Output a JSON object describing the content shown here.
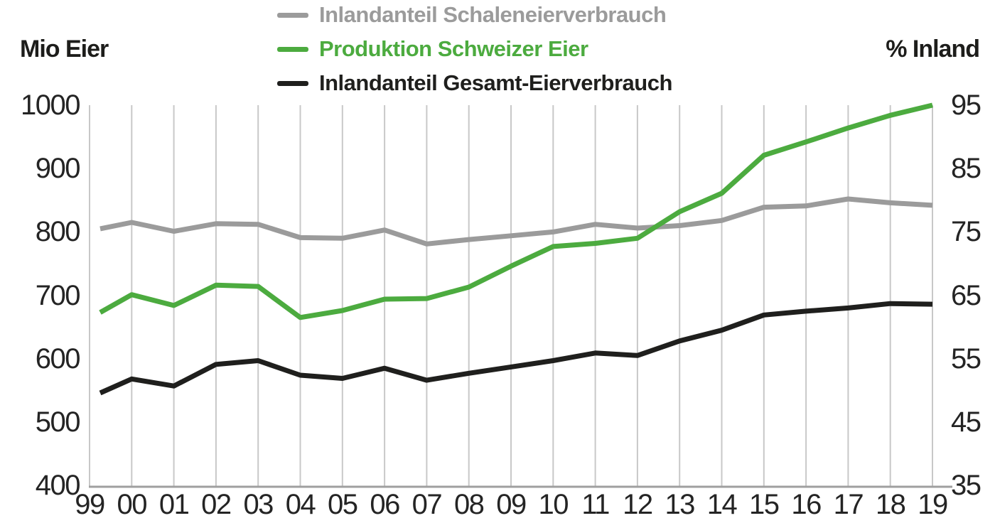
{
  "chart_data": {
    "type": "line",
    "left_axis": {
      "title": "Mio Eier",
      "ticks": [
        1000,
        900,
        800,
        700,
        600,
        500,
        400
      ],
      "range": [
        400,
        1000
      ]
    },
    "right_axis": {
      "title": "% Inland",
      "ticks": [
        95,
        85,
        75,
        65,
        55,
        45,
        35
      ],
      "range": [
        35,
        95
      ]
    },
    "x_tick_labels": [
      "99",
      "00",
      "01",
      "02",
      "03",
      "04",
      "05",
      "06",
      "07",
      "08",
      "09",
      "10",
      "11",
      "12",
      "13",
      "14",
      "15",
      "16",
      "17",
      "18",
      "19"
    ],
    "grid": "vertical-only",
    "legend_position": "top-center",
    "colors": {
      "gridline": "#c8c8c8",
      "axis_line": "#9f9f9f"
    },
    "series": [
      {
        "name": "Inlandanteil Schaleneierverbrauch",
        "axis": "right",
        "unit": "%",
        "color": "#9b9b9b",
        "values": [
          75.5,
          76.5,
          75.1,
          76.3,
          76.2,
          74.1,
          74.0,
          75.3,
          73.1,
          73.8,
          74.4,
          75.0,
          76.2,
          75.6,
          76.0,
          76.8,
          78.9,
          79.1,
          80.2,
          79.6,
          79.2
        ]
      },
      {
        "name": "Produktion Schweizer Eier",
        "axis": "left",
        "unit": "Mio Eier",
        "color": "#4cab3f",
        "values": [
          673,
          701,
          684,
          716,
          714,
          665,
          676,
          694,
          695,
          713,
          746,
          777,
          782,
          790,
          832,
          861,
          921,
          942,
          964,
          984,
          1000
        ]
      },
      {
        "name": "Inlandanteil Gesamt-Eierverbrauch",
        "axis": "right",
        "unit": "%",
        "color": "#1f1f1d",
        "values": [
          49.6,
          51.8,
          50.7,
          54.1,
          54.7,
          52.4,
          51.9,
          53.5,
          51.6,
          52.7,
          53.7,
          54.7,
          55.9,
          55.5,
          57.8,
          59.5,
          61.9,
          62.5,
          63.0,
          63.7,
          63.6
        ]
      }
    ]
  }
}
